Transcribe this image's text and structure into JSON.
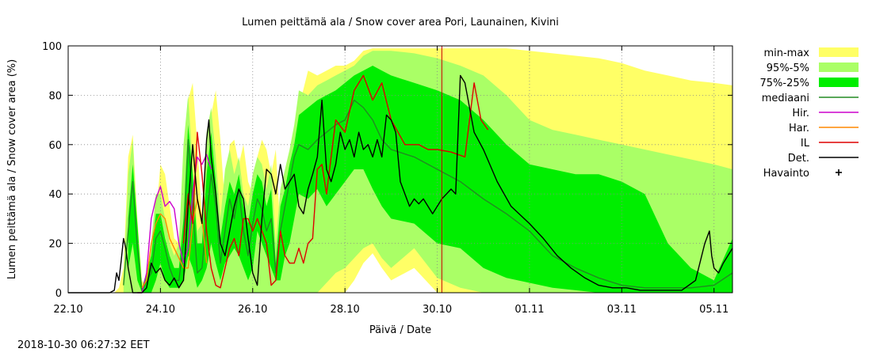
{
  "timestamp": "2018-10-30 06:27:32 EET",
  "chart_data": {
    "type": "area",
    "title": "Lumen peittämä ala / Snow cover area Pori, Launainen, Kivini",
    "xlabel": "Päivä / Date",
    "ylabel": "Lumen peittämä ala / Snow cover area (%)",
    "xlim": [
      0,
      14.4
    ],
    "ylim": [
      0,
      100
    ],
    "x_unit": "days since 22.10 00:00",
    "xticks": [
      {
        "x": 0,
        "label": "22.10"
      },
      {
        "x": 2,
        "label": "24.10"
      },
      {
        "x": 4,
        "label": "26.10"
      },
      {
        "x": 6,
        "label": "28.10"
      },
      {
        "x": 8,
        "label": "30.10"
      },
      {
        "x": 10,
        "label": "01.11"
      },
      {
        "x": 12,
        "label": "03.11"
      },
      {
        "x": 14,
        "label": "05.11"
      }
    ],
    "yticks": [
      0,
      20,
      40,
      60,
      80,
      100
    ],
    "now_x": 8.1,
    "colors": {
      "minmax": "#ffff66",
      "p95": "#aaff66",
      "p75": "#00ee00",
      "median": "#228b22",
      "hir": "#cc00cc",
      "har": "#ff8800",
      "il": "#dd0000",
      "det": "#000000",
      "now_line": "#cc0000",
      "grid": "#888888"
    },
    "legend": {
      "position": "right",
      "entries": [
        {
          "label": "min-max",
          "kind": "box",
          "color": "#ffff66"
        },
        {
          "label": "95%-5%",
          "kind": "box",
          "color": "#aaff66"
        },
        {
          "label": "75%-25%",
          "kind": "box",
          "color": "#00ee00"
        },
        {
          "label": "mediaani",
          "kind": "line",
          "color": "#228b22"
        },
        {
          "label": "Hir.",
          "kind": "line",
          "color": "#cc00cc"
        },
        {
          "label": "Har.",
          "kind": "line",
          "color": "#ff8800"
        },
        {
          "label": "IL",
          "kind": "line",
          "color": "#dd0000"
        },
        {
          "label": "Det.",
          "kind": "line",
          "color": "#000000"
        },
        {
          "label": "Havainto",
          "kind": "plus",
          "color": "#000000"
        }
      ]
    },
    "bands": {
      "minmax": {
        "x": [
          0.9,
          1.0,
          1.1,
          1.2,
          1.3,
          1.4,
          1.5,
          1.6,
          1.7,
          1.8,
          1.9,
          2.0,
          2.1,
          2.2,
          2.3,
          2.4,
          2.5,
          2.6,
          2.7,
          2.8,
          2.9,
          3.0,
          3.1,
          3.2,
          3.3,
          3.4,
          3.5,
          3.6,
          3.7,
          3.8,
          3.9,
          4.0,
          4.1,
          4.2,
          4.3,
          4.4,
          4.5,
          4.6,
          4.7,
          4.8,
          4.9,
          5.0,
          5.2,
          5.4,
          5.6,
          5.8,
          6.0,
          6.2,
          6.4,
          6.6,
          6.8,
          7.0,
          7.5,
          8.0,
          8.5,
          9.0,
          9.5,
          10.0,
          10.5,
          11.0,
          11.5,
          12.0,
          12.5,
          13.0,
          13.5,
          14.0,
          14.4
        ],
        "lo": [
          0,
          0,
          0,
          0,
          0,
          0,
          0,
          0,
          0,
          0,
          0,
          0,
          0,
          0,
          0,
          0,
          0,
          0,
          0,
          0,
          0,
          0,
          0,
          0,
          0,
          0,
          0,
          0,
          0,
          0,
          0,
          0,
          0,
          0,
          0,
          0,
          0,
          0,
          0,
          0,
          0,
          0,
          0,
          0,
          0,
          0,
          0,
          5,
          12,
          16,
          10,
          5,
          10,
          0,
          0,
          0,
          0,
          0,
          0,
          0,
          0,
          0,
          0,
          0,
          0,
          0,
          0
        ],
        "hi": [
          0,
          0,
          2,
          10,
          55,
          64,
          30,
          5,
          2,
          2,
          30,
          52,
          48,
          35,
          22,
          20,
          25,
          78,
          85,
          60,
          30,
          35,
          72,
          82,
          62,
          35,
          60,
          62,
          52,
          60,
          45,
          40,
          55,
          62,
          58,
          48,
          58,
          25,
          48,
          55,
          65,
          75,
          90,
          88,
          90,
          92,
          92,
          94,
          98,
          99,
          99,
          99,
          99,
          99,
          99,
          99,
          99,
          98,
          97,
          96,
          95,
          93,
          90,
          88,
          86,
          85,
          84
        ]
      },
      "p95": {
        "x": [
          1.2,
          1.3,
          1.4,
          1.5,
          1.6,
          1.7,
          1.8,
          1.9,
          2.0,
          2.1,
          2.2,
          2.3,
          2.4,
          2.5,
          2.6,
          2.7,
          2.8,
          2.9,
          3.0,
          3.1,
          3.2,
          3.3,
          3.4,
          3.5,
          3.6,
          3.7,
          3.8,
          3.9,
          4.0,
          4.1,
          4.2,
          4.3,
          4.4,
          4.5,
          4.6,
          4.7,
          4.8,
          4.9,
          5.0,
          5.2,
          5.4,
          5.6,
          5.8,
          6.0,
          6.2,
          6.4,
          6.6,
          6.8,
          7.0,
          7.5,
          8.0,
          8.5,
          9.0,
          9.5,
          10.0,
          10.5,
          11.0,
          11.5,
          12.0,
          12.5,
          13.0,
          13.5,
          14.0,
          14.4
        ],
        "lo": [
          0,
          0,
          0,
          0,
          0,
          0,
          0,
          0,
          0,
          0,
          0,
          0,
          0,
          0,
          0,
          0,
          0,
          0,
          0,
          0,
          0,
          0,
          0,
          0,
          0,
          0,
          0,
          0,
          0,
          0,
          0,
          0,
          0,
          0,
          0,
          0,
          0,
          0,
          0,
          0,
          0,
          4,
          8,
          10,
          14,
          18,
          20,
          14,
          10,
          18,
          6,
          2,
          0,
          0,
          0,
          0,
          0,
          0,
          0,
          0,
          0,
          0,
          0,
          0
        ],
        "hi": [
          5,
          48,
          62,
          25,
          2,
          1,
          20,
          40,
          40,
          30,
          20,
          15,
          20,
          60,
          80,
          52,
          25,
          28,
          65,
          75,
          55,
          30,
          50,
          58,
          48,
          55,
          40,
          35,
          48,
          55,
          52,
          42,
          52,
          20,
          42,
          50,
          58,
          68,
          82,
          80,
          84,
          86,
          88,
          90,
          92,
          96,
          98,
          98,
          98,
          97,
          95,
          92,
          88,
          80,
          70,
          66,
          64,
          62,
          60,
          58,
          56,
          54,
          52,
          50
        ]
      },
      "p75": {
        "x": [
          1.3,
          1.4,
          1.5,
          1.6,
          1.8,
          1.9,
          2.0,
          2.1,
          2.2,
          2.3,
          2.4,
          2.5,
          2.6,
          2.7,
          2.8,
          2.9,
          3.0,
          3.1,
          3.2,
          3.3,
          3.4,
          3.5,
          3.6,
          3.7,
          3.8,
          3.9,
          4.0,
          4.1,
          4.2,
          4.3,
          4.4,
          4.5,
          4.6,
          4.7,
          4.8,
          4.9,
          5.0,
          5.2,
          5.4,
          5.6,
          5.8,
          6.0,
          6.2,
          6.4,
          6.6,
          6.8,
          7.0,
          7.5,
          8.0,
          8.5,
          9.0,
          9.5,
          10.0,
          10.5,
          11.0,
          11.5,
          12.0,
          12.5,
          13.0,
          13.5,
          14.0,
          14.4
        ],
        "lo": [
          10,
          20,
          5,
          0,
          0,
          5,
          12,
          5,
          2,
          2,
          2,
          5,
          15,
          10,
          2,
          5,
          10,
          20,
          12,
          5,
          12,
          15,
          18,
          15,
          10,
          5,
          10,
          25,
          20,
          15,
          10,
          5,
          5,
          15,
          20,
          30,
          40,
          38,
          42,
          35,
          40,
          45,
          50,
          50,
          42,
          35,
          30,
          28,
          20,
          18,
          10,
          6,
          4,
          2,
          1,
          0,
          0,
          0,
          0,
          0,
          0,
          0
        ],
        "hi": [
          30,
          52,
          28,
          2,
          15,
          32,
          32,
          22,
          15,
          10,
          10,
          30,
          68,
          48,
          20,
          20,
          48,
          65,
          45,
          22,
          35,
          45,
          40,
          48,
          35,
          28,
          40,
          48,
          45,
          35,
          42,
          12,
          35,
          42,
          52,
          60,
          72,
          75,
          78,
          80,
          82,
          85,
          88,
          90,
          92,
          90,
          88,
          85,
          82,
          78,
          70,
          60,
          52,
          50,
          48,
          48,
          45,
          40,
          20,
          10,
          5,
          22
        ]
      }
    },
    "series": [
      {
        "name": "mediaani",
        "color": "#228b22",
        "x": [
          1.2,
          1.3,
          1.4,
          1.5,
          1.6,
          1.8,
          1.9,
          2.0,
          2.1,
          2.2,
          2.3,
          2.4,
          2.5,
          2.6,
          2.7,
          2.8,
          2.9,
          3.0,
          3.1,
          3.2,
          3.3,
          3.4,
          3.5,
          3.6,
          3.7,
          3.8,
          3.9,
          4.0,
          4.1,
          4.2,
          4.3,
          4.4,
          4.5,
          4.6,
          4.7,
          4.8,
          4.9,
          5.0,
          5.2,
          5.4,
          5.6,
          5.8,
          6.0,
          6.2,
          6.4,
          6.6,
          6.8,
          7.0,
          7.5,
          8.0,
          8.5,
          9.0,
          9.5,
          10.0,
          10.5,
          11.0,
          11.5,
          12.0,
          12.5,
          13.0,
          13.5,
          14.0,
          14.4
        ],
        "y": [
          3,
          25,
          45,
          18,
          1,
          8,
          22,
          25,
          18,
          10,
          5,
          5,
          20,
          62,
          35,
          8,
          10,
          30,
          48,
          35,
          12,
          25,
          38,
          30,
          42,
          25,
          15,
          28,
          38,
          34,
          25,
          30,
          8,
          25,
          35,
          45,
          55,
          60,
          58,
          62,
          65,
          68,
          70,
          78,
          75,
          70,
          62,
          58,
          55,
          50,
          45,
          38,
          32,
          25,
          15,
          10,
          6,
          3,
          2,
          2,
          2,
          3,
          8
        ]
      },
      {
        "name": "Hir.",
        "color": "#cc00cc",
        "x": [
          1.5,
          1.6,
          1.7,
          1.8,
          1.9,
          2.0,
          2.1,
          2.2,
          2.3,
          2.4,
          2.5,
          2.6,
          2.7,
          2.8,
          2.9,
          3.0,
          3.1
        ],
        "y": [
          0,
          0,
          8,
          30,
          38,
          43,
          35,
          37,
          34,
          20,
          12,
          18,
          40,
          55,
          52,
          56,
          50
        ]
      },
      {
        "name": "Har.",
        "color": "#ff8800",
        "x": [
          1.6,
          1.7,
          1.8,
          1.9,
          2.0,
          2.1,
          2.2,
          2.3,
          2.4,
          2.5,
          2.6,
          2.7,
          2.8,
          2.9,
          3.0
        ],
        "y": [
          2,
          5,
          20,
          28,
          32,
          30,
          22,
          18,
          14,
          10,
          10,
          28,
          38,
          30,
          12
        ]
      },
      {
        "name": "IL",
        "color": "#dd0000",
        "x": [
          2.5,
          2.6,
          2.7,
          2.8,
          2.9,
          3.0,
          3.1,
          3.2,
          3.3,
          3.4,
          3.5,
          3.6,
          3.7,
          3.8,
          3.9,
          4.0,
          4.1,
          4.2,
          4.3,
          4.4,
          4.5,
          4.6,
          4.7,
          4.8,
          4.9,
          5.0,
          5.1,
          5.2,
          5.3,
          5.4,
          5.5,
          5.6,
          5.7,
          5.8,
          6.0,
          6.2,
          6.4,
          6.6,
          6.8,
          7.0,
          7.3,
          7.6,
          7.8,
          8.0,
          8.3,
          8.6,
          8.8,
          8.95,
          9.1
        ],
        "y": [
          20,
          40,
          28,
          65,
          48,
          25,
          10,
          3,
          2,
          10,
          18,
          22,
          15,
          30,
          30,
          25,
          30,
          25,
          20,
          3,
          5,
          25,
          15,
          12,
          12,
          18,
          12,
          20,
          22,
          50,
          52,
          40,
          55,
          70,
          65,
          82,
          88,
          78,
          85,
          70,
          60,
          60,
          58,
          58,
          57,
          55,
          85,
          70,
          66
        ]
      },
      {
        "name": "Det.",
        "color": "#000000",
        "x": [
          0,
          0.9,
          1.0,
          1.05,
          1.1,
          1.15,
          1.2,
          1.25,
          1.3,
          1.35,
          1.4,
          1.5,
          1.6,
          1.7,
          1.8,
          1.9,
          2.0,
          2.1,
          2.2,
          2.3,
          2.4,
          2.5,
          2.6,
          2.7,
          2.8,
          2.9,
          3.0,
          3.05,
          3.1,
          3.2,
          3.3,
          3.4,
          3.5,
          3.6,
          3.7,
          3.8,
          3.9,
          4.0,
          4.1,
          4.2,
          4.3,
          4.4,
          4.5,
          4.6,
          4.7,
          4.8,
          4.9,
          5.0,
          5.1,
          5.2,
          5.3,
          5.4,
          5.5,
          5.6,
          5.7,
          5.8,
          5.9,
          6.0,
          6.1,
          6.2,
          6.3,
          6.4,
          6.5,
          6.6,
          6.7,
          6.8,
          6.9,
          7.0,
          7.1,
          7.2,
          7.3,
          7.4,
          7.5,
          7.6,
          7.7,
          7.8,
          7.9,
          8.0,
          8.1,
          8.2,
          8.3,
          8.4,
          8.5,
          8.6,
          8.7,
          8.8,
          9.0,
          9.3,
          9.6,
          10.0,
          10.3,
          10.6,
          10.9,
          11.2,
          11.5,
          11.8,
          12.1,
          12.4,
          12.7,
          13.0,
          13.3,
          13.6,
          13.8,
          13.9,
          13.95,
          14.0,
          14.1,
          14.2,
          14.3,
          14.4
        ],
        "y": [
          0,
          0,
          1,
          8,
          5,
          13,
          22,
          18,
          10,
          5,
          0,
          0,
          0,
          2,
          12,
          8,
          10,
          5,
          3,
          6,
          2,
          5,
          35,
          60,
          38,
          28,
          62,
          70,
          55,
          40,
          20,
          15,
          25,
          35,
          42,
          38,
          22,
          8,
          3,
          30,
          50,
          48,
          40,
          52,
          42,
          45,
          48,
          35,
          32,
          42,
          48,
          55,
          78,
          50,
          45,
          52,
          65,
          58,
          62,
          55,
          65,
          58,
          60,
          55,
          62,
          55,
          72,
          70,
          65,
          45,
          40,
          35,
          38,
          36,
          38,
          35,
          32,
          35,
          38,
          40,
          42,
          40,
          88,
          85,
          75,
          65,
          58,
          45,
          35,
          28,
          22,
          15,
          10,
          6,
          3,
          2,
          2,
          1,
          1,
          1,
          1,
          5,
          20,
          25,
          15,
          10,
          8,
          12,
          15,
          18
        ]
      }
    ]
  }
}
